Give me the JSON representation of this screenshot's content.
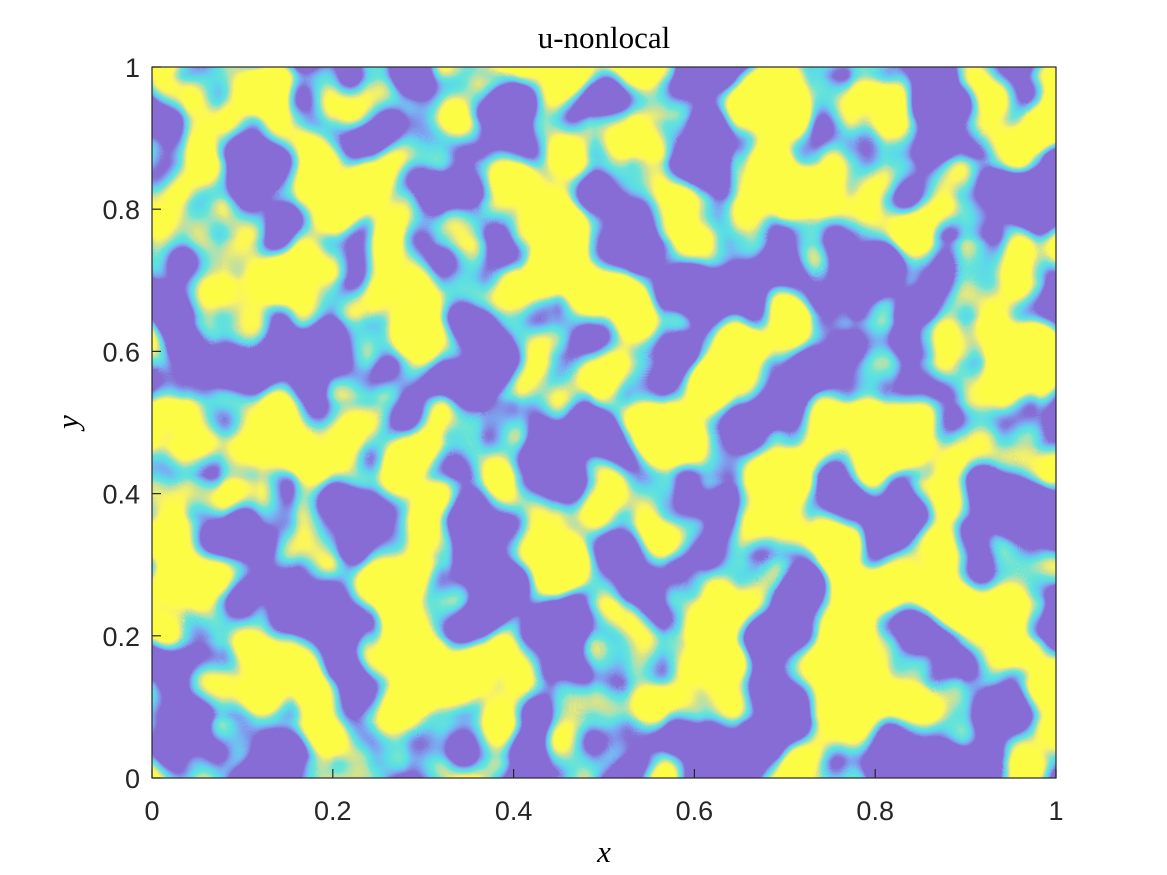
{
  "chart_data": {
    "type": "field",
    "title": "u-nonlocal",
    "xlabel": "x",
    "ylabel": "y",
    "xlim": [
      0,
      1
    ],
    "ylim": [
      0,
      1
    ],
    "xticks": [
      0,
      0.2,
      0.4,
      0.6,
      0.8,
      1
    ],
    "yticks": [
      0,
      0.2,
      0.4,
      0.6,
      0.8,
      1
    ]
  }
}
